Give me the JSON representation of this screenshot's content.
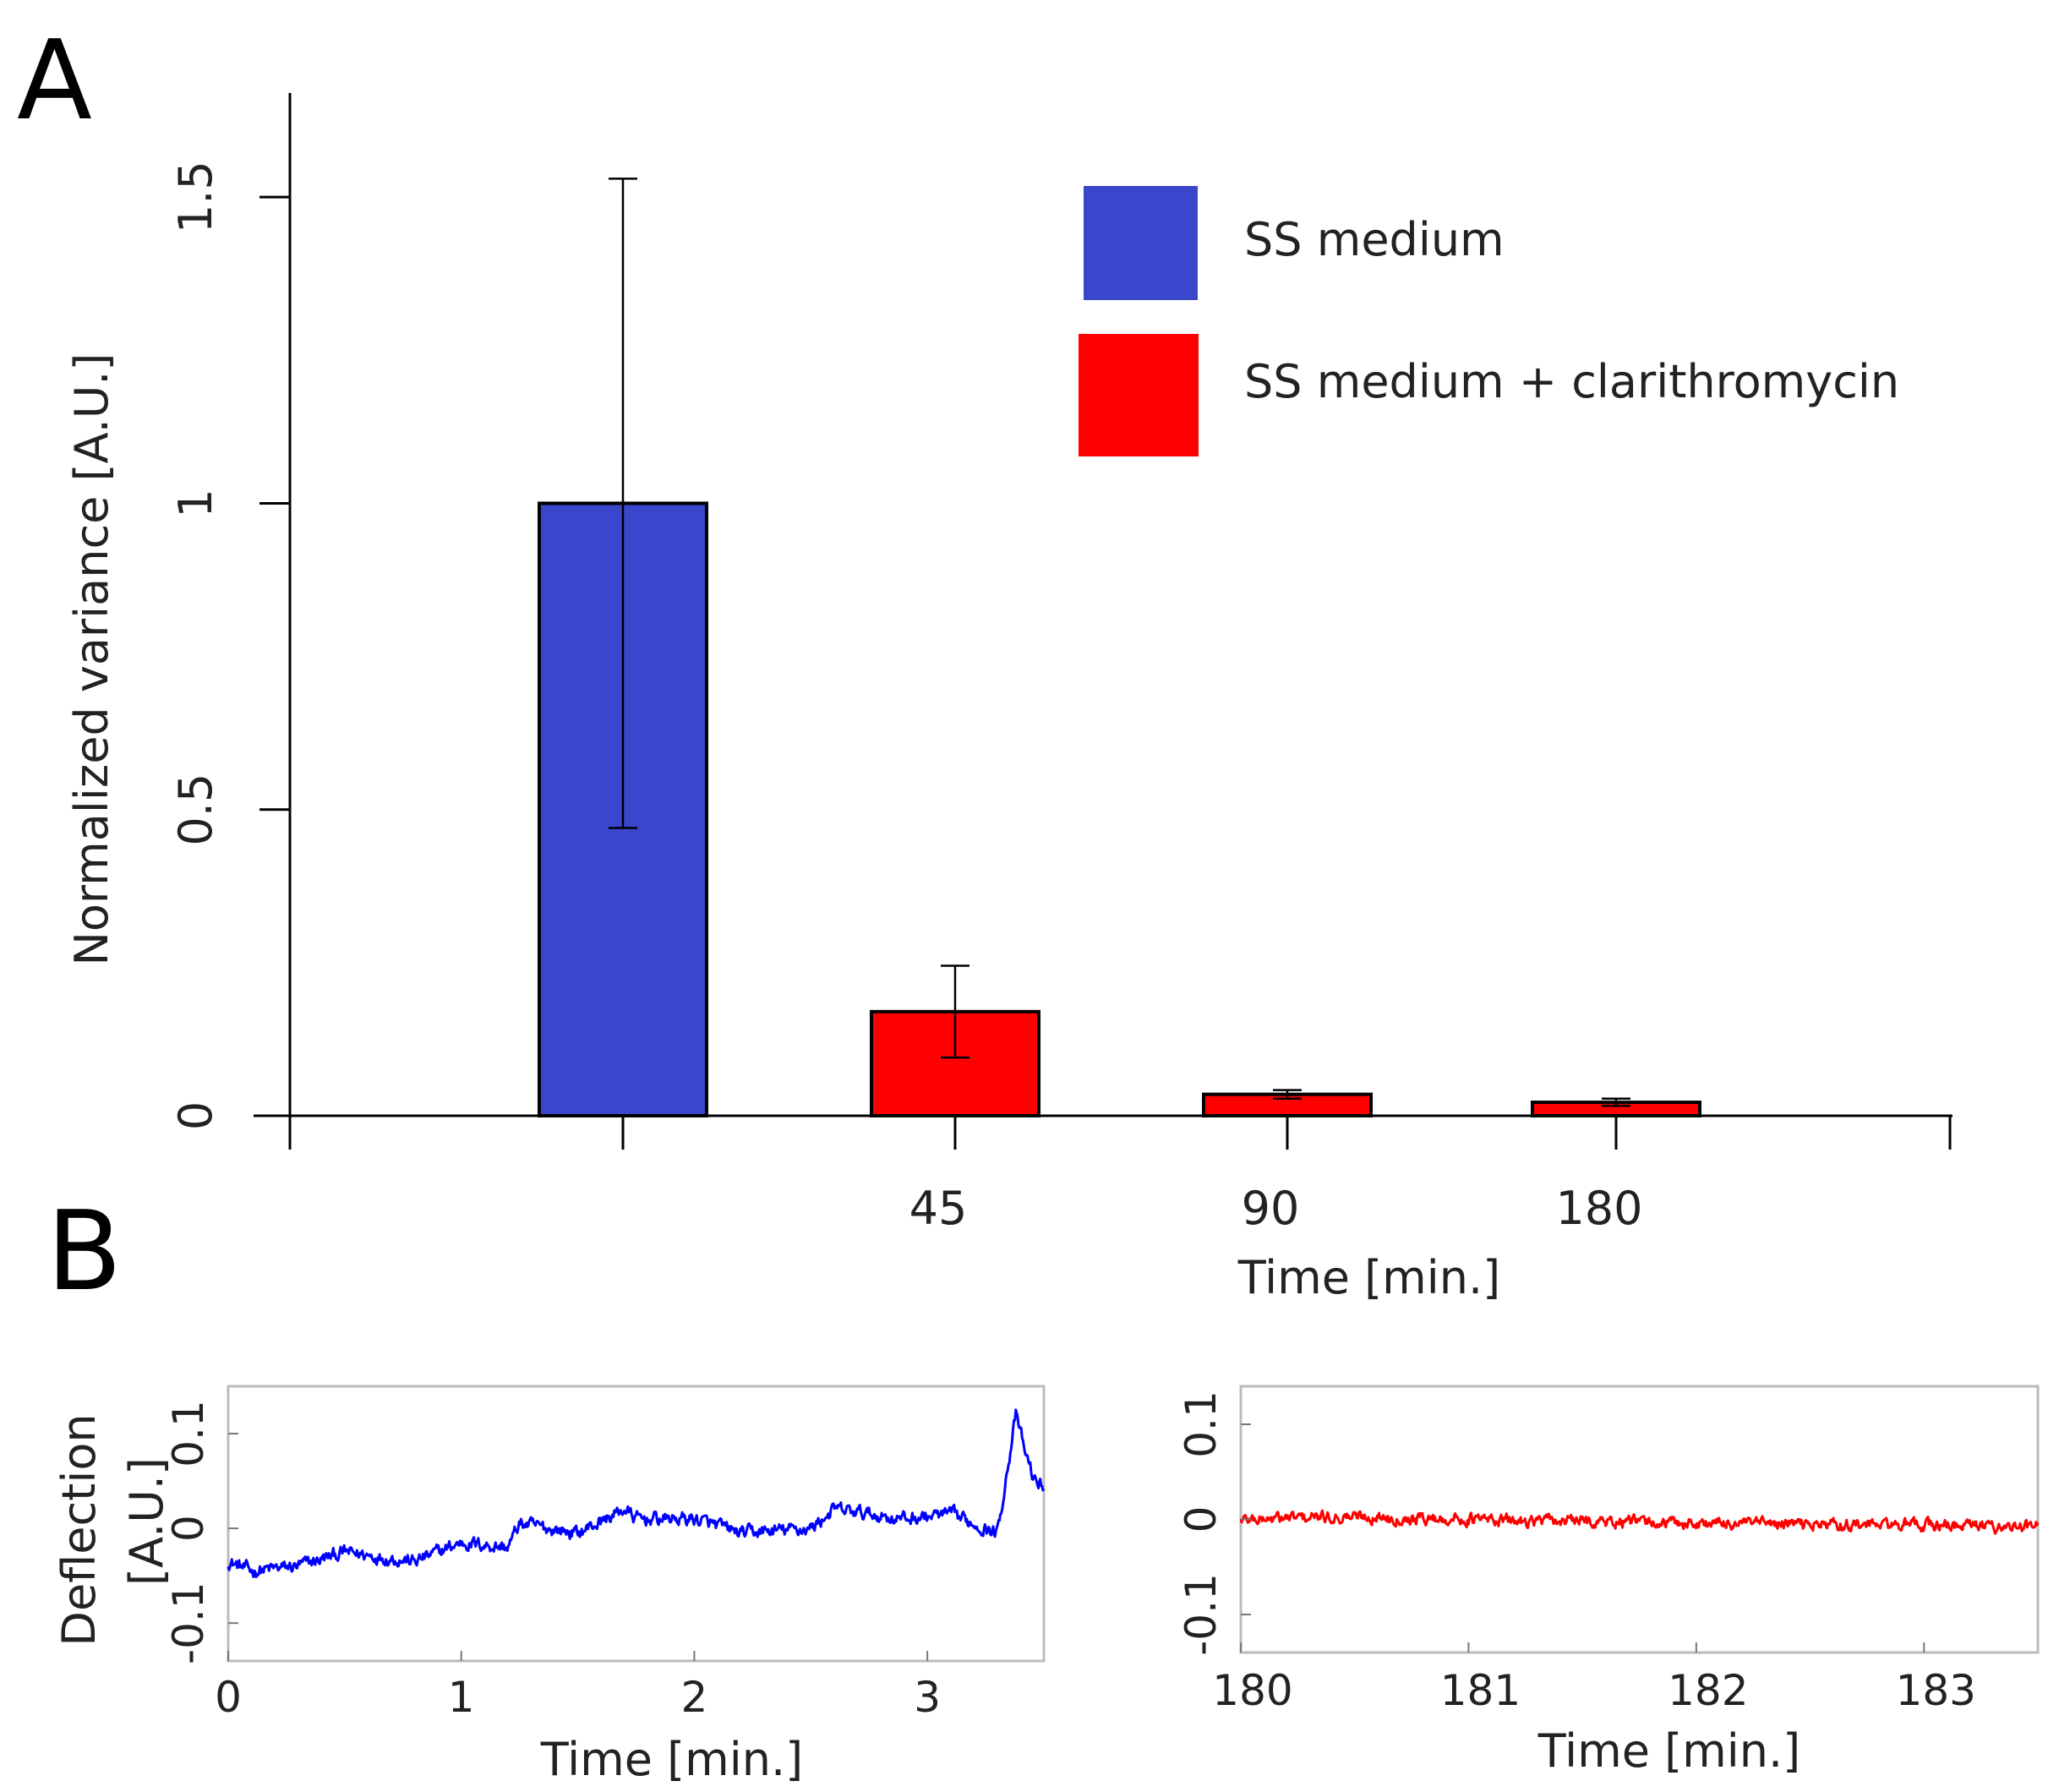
{
  "panels": {
    "a_letter": "A",
    "b_letter": "B"
  },
  "chart_data": [
    {
      "type": "bar",
      "panel": "A",
      "title": "",
      "xlabel": "Time [min.]",
      "ylabel": "Normalized variance [A.U.]",
      "categories": [
        "",
        "45",
        "90",
        "180"
      ],
      "values": [
        1.0,
        0.17,
        0.035,
        0.022
      ],
      "errors": [
        0.53,
        0.075,
        0.007,
        0.006
      ],
      "series_of_bar": [
        "SS medium",
        "SS medium + clarithromycin",
        "SS medium + clarithromycin",
        "SS medium + clarithromycin"
      ],
      "yticks": [
        0,
        0.5,
        1,
        1.5
      ],
      "ytick_labels": [
        "0",
        "0.5",
        "1",
        "1.5"
      ],
      "ylim": [
        0,
        1.67
      ],
      "legend": [
        {
          "label": "SS medium",
          "color": "#3a46cc"
        },
        {
          "label": "SS medium + clarithromycin",
          "color": "#ff0000"
        }
      ],
      "legend_placement": "top-right"
    },
    {
      "type": "line",
      "panel": "B-left",
      "xlabel": "Time [min.]",
      "ylabel_line1": "Deflection",
      "ylabel_line2": "[A.U.]",
      "xlim": [
        0,
        3.5
      ],
      "ylim": [
        -0.14,
        0.15
      ],
      "xticks": [
        0,
        1,
        2,
        3
      ],
      "xtick_labels": [
        "0",
        "1",
        "2",
        "3"
      ],
      "yticks": [
        -0.1,
        0,
        0.1
      ],
      "ytick_labels": [
        "-0.1",
        "0",
        "0.1"
      ],
      "color": "#0000ff",
      "trend_x": [
        0,
        0.1,
        0.3,
        0.5,
        0.8,
        1.0,
        1.2,
        1.25,
        1.5,
        1.7,
        1.75,
        2.0,
        2.2,
        2.5,
        2.6,
        2.9,
        3.1,
        3.3,
        3.38,
        3.42,
        3.46,
        3.5
      ],
      "trend_y": [
        -0.035,
        -0.045,
        -0.04,
        -0.025,
        -0.035,
        -0.015,
        -0.02,
        0.005,
        -0.005,
        0.02,
        0.01,
        0.01,
        -0.005,
        0.0,
        0.02,
        0.01,
        0.015,
        -0.005,
        0.12,
        0.08,
        0.05,
        0.045
      ],
      "noise_amplitude": 0.007
    },
    {
      "type": "line",
      "panel": "B-right",
      "xlabel": "Time [min.]",
      "xlim": [
        180,
        183.5
      ],
      "ylim": [
        -0.14,
        0.14
      ],
      "xticks": [
        180,
        181,
        182,
        183
      ],
      "xtick_labels": [
        "180",
        "181",
        "182",
        "183"
      ],
      "yticks": [
        -0.1,
        0,
        0.1
      ],
      "ytick_labels": [
        "-0.1",
        "0",
        "0.1"
      ],
      "color": "#ff0000",
      "trend_x": [
        180,
        180.5,
        181,
        181.5,
        182,
        182.5,
        183,
        183.5
      ],
      "trend_y": [
        0.0,
        0.003,
        0.0,
        -0.002,
        -0.004,
        -0.005,
        -0.006,
        -0.008
      ],
      "noise_amplitude": 0.006
    }
  ]
}
